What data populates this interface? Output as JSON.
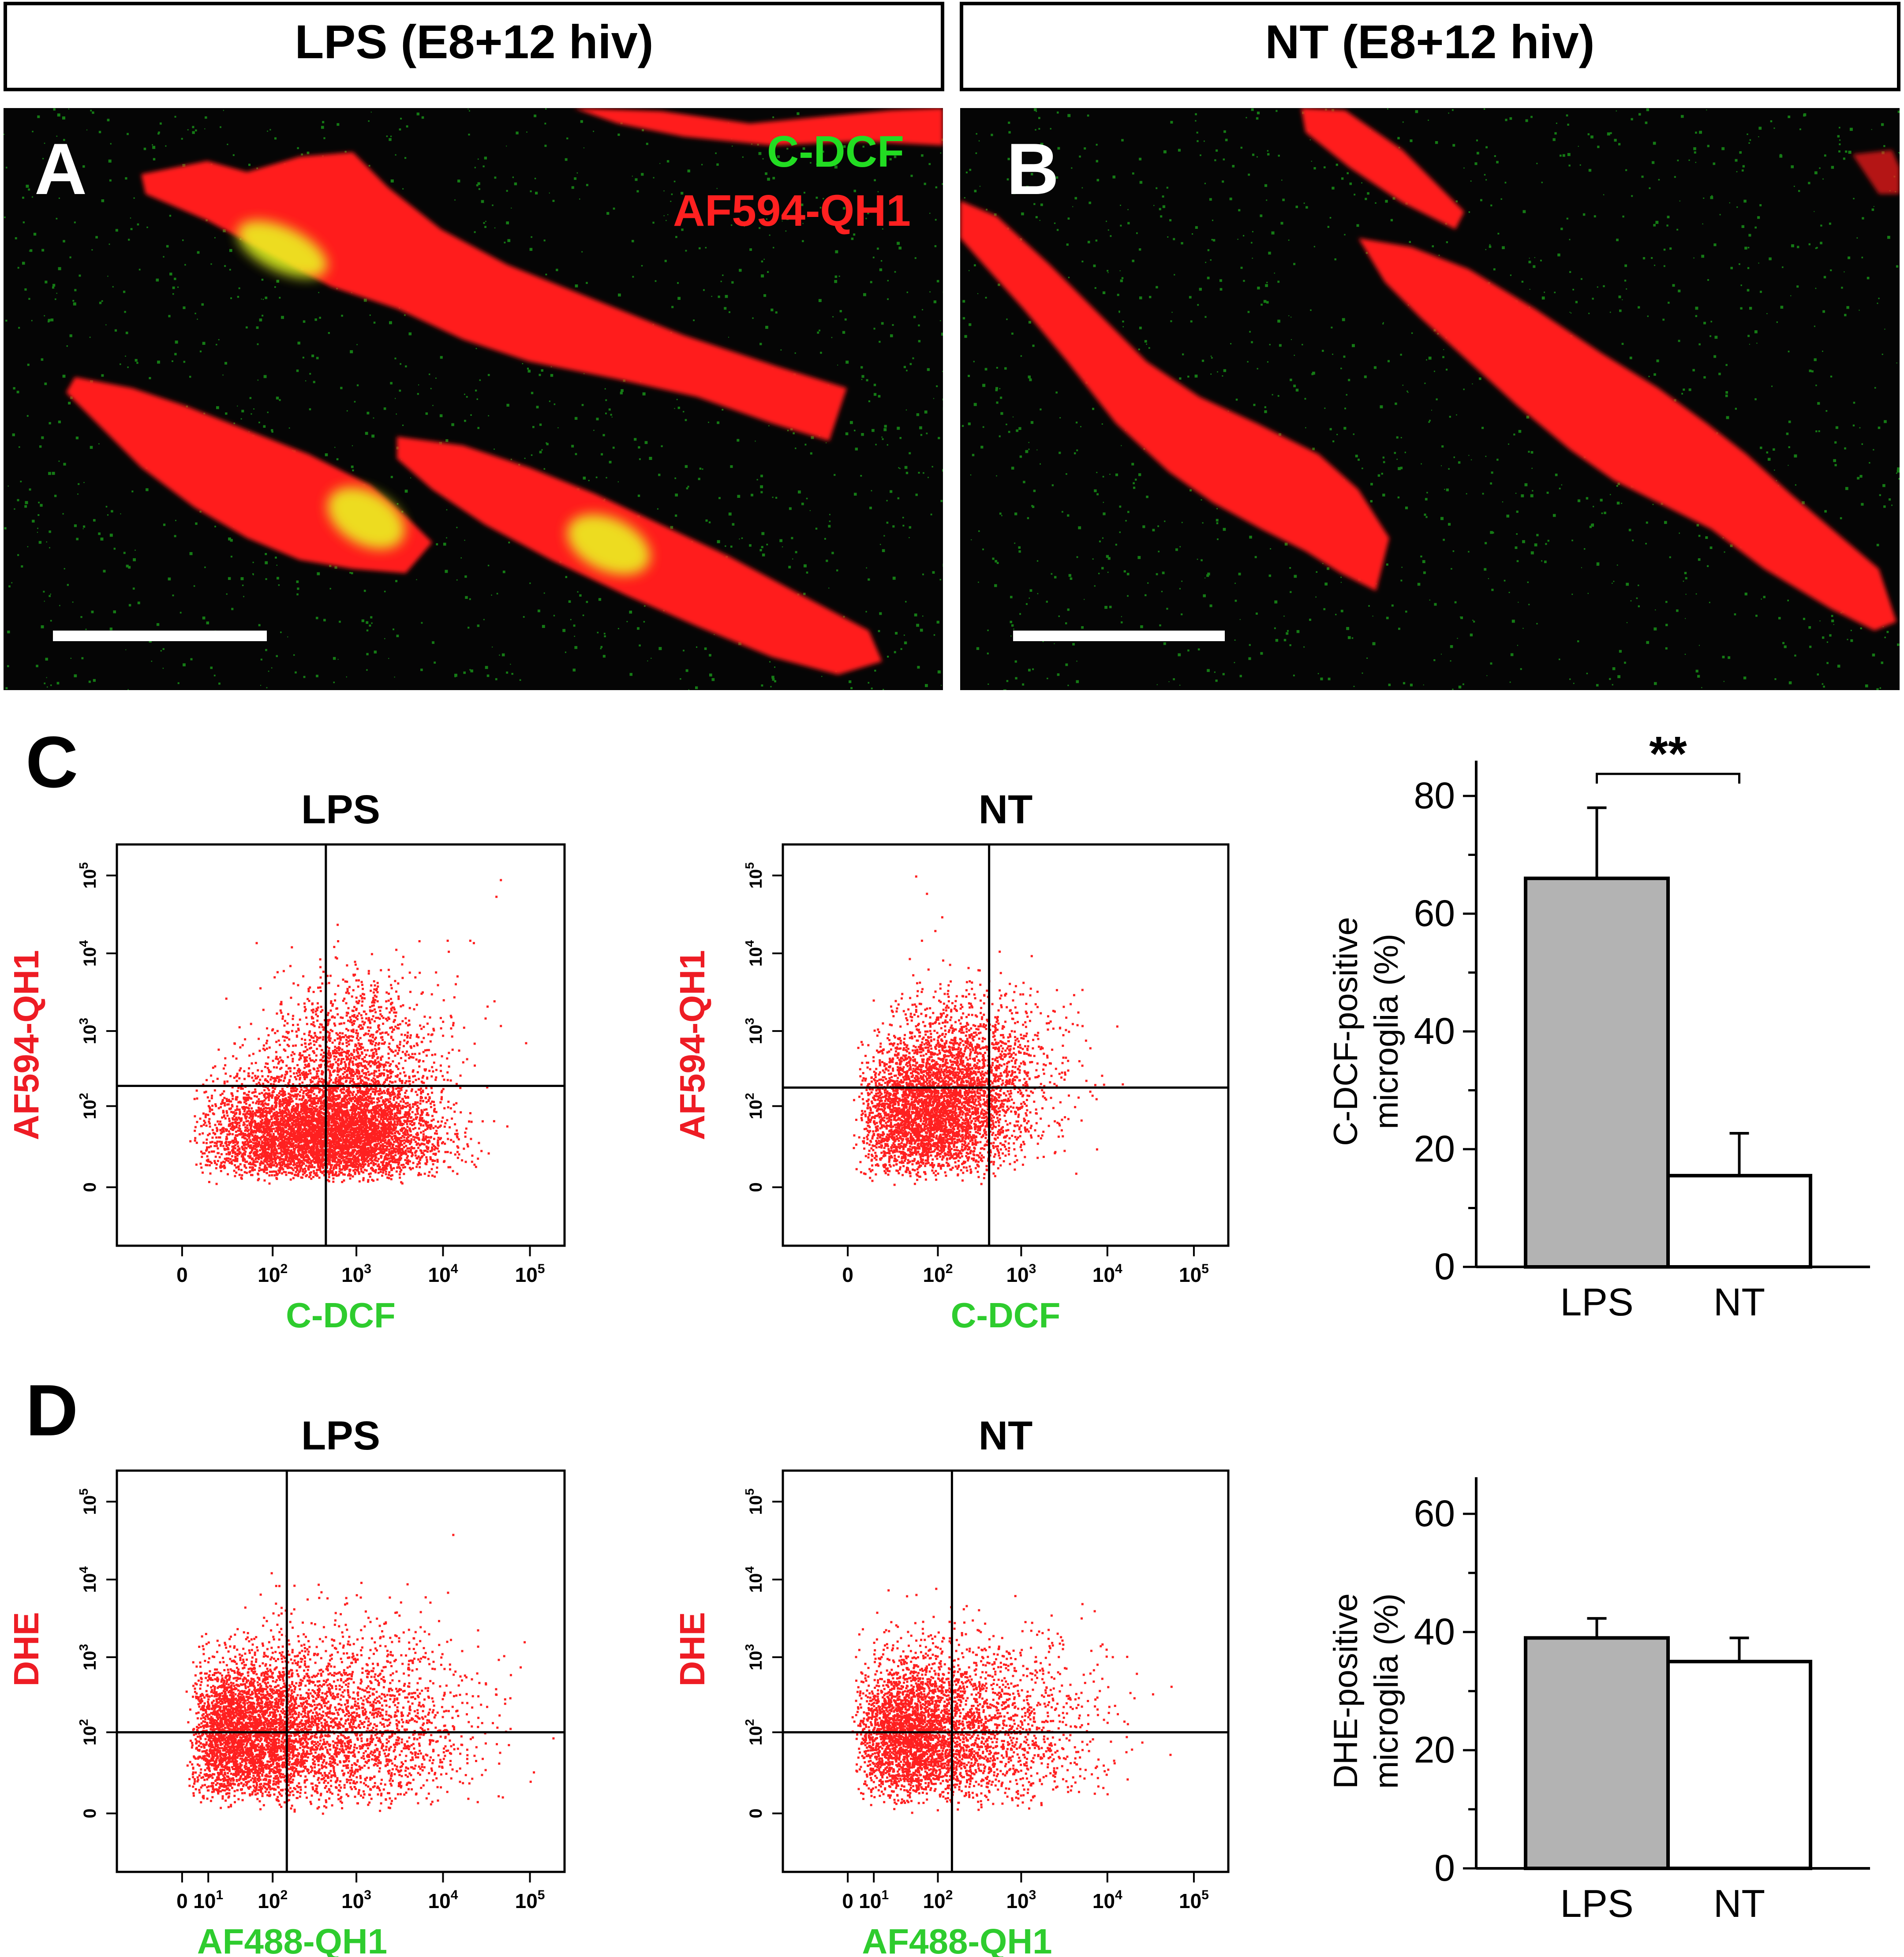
{
  "figure": {
    "panels_top": [
      {
        "letter": "A",
        "header": "LPS (E8+12 hiv)",
        "legend": [
          {
            "text": "C-DCF",
            "color": "#22dd22"
          },
          {
            "text": "AF594-QH1",
            "color": "#ff2020"
          }
        ]
      },
      {
        "letter": "B",
        "header": "NT (E8+12 hiv)"
      }
    ]
  },
  "panel_c_letter": "C",
  "panel_d_letter": "D",
  "colors": {
    "cell": "#ff1a1a",
    "dot_red": "#ff2020",
    "dot_green": "#22dd22",
    "axis_red": "#ee1c24",
    "axis_green": "#2ecc2e",
    "bar_lps": "#b3b3b3",
    "bar_nt": "#ffffff",
    "micrograph_bg": "#050505"
  },
  "chart_data": [
    {
      "id": "C-LPS",
      "type": "scatter",
      "title": "LPS",
      "xlabel": "C-DCF",
      "ylabel": "AF594-QH1",
      "xticks": [
        {
          "pos": "0",
          "base": "0",
          "exp": ""
        },
        {
          "pos": "100",
          "base": "10",
          "exp": "2"
        },
        {
          "pos": "1000",
          "base": "10",
          "exp": "3"
        },
        {
          "pos": "10000",
          "base": "10",
          "exp": "4"
        },
        {
          "pos": "100000",
          "base": "10",
          "exp": "5"
        }
      ],
      "yticks": [
        {
          "pos": "0",
          "base": "0",
          "exp": ""
        },
        {
          "pos": "100",
          "base": "10",
          "exp": "2"
        },
        {
          "pos": "1000",
          "base": "10",
          "exp": "3"
        },
        {
          "pos": "10000",
          "base": "10",
          "exp": "4"
        },
        {
          "pos": "100000",
          "base": "10",
          "exp": "5"
        }
      ],
      "gate": {
        "x": 440,
        "y": 190
      },
      "clusters": [
        {
          "cx": 150,
          "cy": 40,
          "sx": 2.0,
          "sy": 1.5,
          "n": 2800
        },
        {
          "cx": 1000,
          "cy": 40,
          "sx": 1.8,
          "sy": 1.5,
          "n": 2800
        },
        {
          "cx": 900,
          "cy": 400,
          "sx": 1.8,
          "sy": 2.0,
          "n": 1500
        }
      ],
      "outliers": [
        [
          45000,
          90000
        ],
        [
          40000,
          55000
        ],
        [
          22000,
          14000
        ],
        [
          20000,
          15000
        ],
        [
          11000,
          15000
        ],
        [
          38000,
          2500
        ],
        [
          30000,
          1500
        ],
        [
          45000,
          1200
        ],
        [
          400,
          6000
        ],
        [
          60,
          14000
        ]
      ]
    },
    {
      "id": "C-NT",
      "type": "scatter",
      "title": "NT",
      "xlabel": "C-DCF",
      "ylabel": "AF594-QH1",
      "xticks": [
        {
          "pos": "0",
          "base": "0",
          "exp": ""
        },
        {
          "pos": "100",
          "base": "10",
          "exp": "2"
        },
        {
          "pos": "1000",
          "base": "10",
          "exp": "3"
        },
        {
          "pos": "10000",
          "base": "10",
          "exp": "4"
        },
        {
          "pos": "100000",
          "base": "10",
          "exp": "5"
        }
      ],
      "yticks": [
        {
          "pos": "0",
          "base": "0",
          "exp": ""
        },
        {
          "pos": "100",
          "base": "10",
          "exp": "2"
        },
        {
          "pos": "1000",
          "base": "10",
          "exp": "3"
        },
        {
          "pos": "10000",
          "base": "10",
          "exp": "4"
        },
        {
          "pos": "100000",
          "base": "10",
          "exp": "5"
        }
      ],
      "gate": {
        "x": 420,
        "y": 180
      },
      "clusters": [
        {
          "cx": 70,
          "cy": 80,
          "sx": 1.8,
          "sy": 1.8,
          "n": 3200
        },
        {
          "cx": 250,
          "cy": 300,
          "sx": 1.8,
          "sy": 1.9,
          "n": 1500
        }
      ],
      "outliers": [
        [
          70,
          60000
        ],
        [
          50,
          100000
        ],
        [
          60,
          15000
        ],
        [
          90,
          20000
        ],
        [
          110,
          30000
        ],
        [
          5000,
          3500
        ],
        [
          4000,
          3000
        ],
        [
          2000,
          1600
        ],
        [
          1500,
          900
        ],
        [
          1200,
          500
        ]
      ]
    },
    {
      "id": "C-bar",
      "type": "bar",
      "categories": [
        "LPS",
        "NT"
      ],
      "values": [
        66,
        15.5
      ],
      "errors": [
        12,
        7.2
      ],
      "ylabel_lines": [
        "C-DCF-positive",
        "microglia (%)"
      ],
      "ylim": [
        0,
        80
      ],
      "yticks": [
        "0",
        "20",
        "40",
        "60",
        "80"
      ],
      "significance": "**"
    },
    {
      "id": "D-LPS",
      "type": "scatter",
      "title": "LPS",
      "xlabel": "AF488-QH1",
      "ylabel": "DHE",
      "xticks": [
        {
          "pos": "0",
          "base": "0",
          "exp": ""
        },
        {
          "pos": "10",
          "base": "10",
          "exp": "1"
        },
        {
          "pos": "100",
          "base": "10",
          "exp": "2"
        },
        {
          "pos": "1000",
          "base": "10",
          "exp": "3"
        },
        {
          "pos": "10000",
          "base": "10",
          "exp": "4"
        },
        {
          "pos": "100000",
          "base": "10",
          "exp": "5"
        }
      ],
      "yticks": [
        {
          "pos": "0",
          "base": "0",
          "exp": ""
        },
        {
          "pos": "100",
          "base": "10",
          "exp": "2"
        },
        {
          "pos": "1000",
          "base": "10",
          "exp": "3"
        },
        {
          "pos": "10000",
          "base": "10",
          "exp": "4"
        },
        {
          "pos": "100000",
          "base": "10",
          "exp": "5"
        }
      ],
      "gate": {
        "x": 150,
        "y": 100
      },
      "clusters": [
        {
          "cx": 40,
          "cy": 100,
          "sx": 1.6,
          "sy": 1.7,
          "n": 2800
        },
        {
          "cx": 500,
          "cy": 120,
          "sx": 2.8,
          "sy": 2.3,
          "n": 2800
        }
      ],
      "outliers": [
        [
          8000,
          120
        ],
        [
          10000,
          200
        ]
      ]
    },
    {
      "id": "D-NT",
      "type": "scatter",
      "title": "NT",
      "xlabel": "AF488-QH1",
      "ylabel": "DHE",
      "xticks": [
        {
          "pos": "0",
          "base": "0",
          "exp": ""
        },
        {
          "pos": "10",
          "base": "10",
          "exp": "1"
        },
        {
          "pos": "100",
          "base": "10",
          "exp": "2"
        },
        {
          "pos": "1000",
          "base": "10",
          "exp": "3"
        },
        {
          "pos": "10000",
          "base": "10",
          "exp": "4"
        },
        {
          "pos": "100000",
          "base": "10",
          "exp": "5"
        }
      ],
      "yticks": [
        {
          "pos": "0",
          "base": "0",
          "exp": ""
        },
        {
          "pos": "100",
          "base": "10",
          "exp": "2"
        },
        {
          "pos": "1000",
          "base": "10",
          "exp": "3"
        },
        {
          "pos": "10000",
          "base": "10",
          "exp": "4"
        },
        {
          "pos": "100000",
          "base": "10",
          "exp": "5"
        }
      ],
      "gate": {
        "x": 150,
        "y": 100
      },
      "clusters": [
        {
          "cx": 45,
          "cy": 100,
          "sx": 1.6,
          "sy": 1.7,
          "n": 2600
        },
        {
          "cx": 300,
          "cy": 110,
          "sx": 2.5,
          "sy": 2.2,
          "n": 1600
        }
      ],
      "outliers": [
        [
          20000,
          300
        ],
        [
          5000,
          5000
        ],
        [
          3000,
          1500
        ]
      ]
    },
    {
      "id": "D-bar",
      "type": "bar",
      "categories": [
        "LPS",
        "NT"
      ],
      "values": [
        39,
        35
      ],
      "errors": [
        3.3,
        4
      ],
      "ylabel_lines": [
        "DHE-positive",
        "microglia (%)"
      ],
      "ylim": [
        0,
        60
      ],
      "yticks": [
        "0",
        "20",
        "40",
        "60"
      ]
    }
  ]
}
